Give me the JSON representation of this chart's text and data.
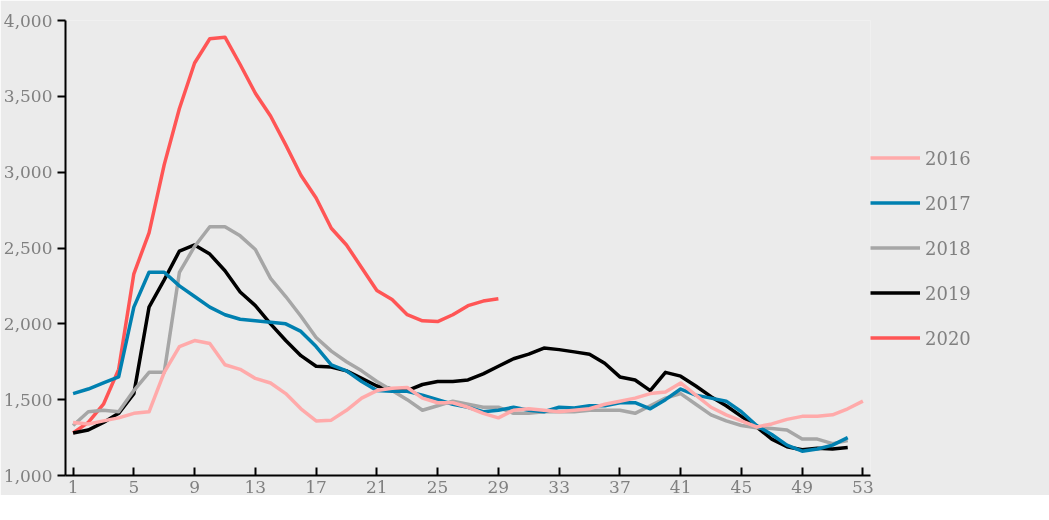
{
  "chart_data": {
    "type": "line",
    "x": [
      1,
      2,
      3,
      4,
      5,
      6,
      7,
      8,
      9,
      10,
      11,
      12,
      13,
      14,
      15,
      16,
      17,
      18,
      19,
      20,
      21,
      22,
      23,
      24,
      25,
      26,
      27,
      28,
      29,
      30,
      31,
      32,
      33,
      34,
      35,
      36,
      37,
      38,
      39,
      40,
      41,
      42,
      43,
      44,
      45,
      46,
      47,
      48,
      49,
      50,
      51,
      52,
      53
    ],
    "series": [
      {
        "name": "2016",
        "color": "#ffaaaa",
        "values": [
          1350,
          1340,
          1360,
          1380,
          1410,
          1420,
          1680,
          1850,
          1890,
          1870,
          1730,
          1700,
          1640,
          1610,
          1540,
          1440,
          1360,
          1365,
          1430,
          1510,
          1560,
          1575,
          1580,
          1510,
          1480,
          1480,
          1450,
          1410,
          1380,
          1430,
          1440,
          1430,
          1420,
          1430,
          1440,
          1470,
          1490,
          1510,
          1540,
          1550,
          1610,
          1530,
          1450,
          1400,
          1360,
          1320,
          1340,
          1370,
          1390,
          1390,
          1400,
          1440,
          1490
        ]
      },
      {
        "name": "2017",
        "color": "#0080b0",
        "values": [
          1540,
          1570,
          1610,
          1650,
          2110,
          2340,
          2340,
          2250,
          2180,
          2110,
          2060,
          2030,
          2020,
          2010,
          2000,
          1950,
          1850,
          1730,
          1690,
          1620,
          1560,
          1555,
          1555,
          1530,
          1500,
          1470,
          1450,
          1420,
          1430,
          1450,
          1430,
          1420,
          1450,
          1445,
          1460,
          1460,
          1480,
          1480,
          1440,
          1500,
          1570,
          1530,
          1510,
          1490,
          1420,
          1330,
          1270,
          1200,
          1160,
          1175,
          1200,
          1250,
          null
        ]
      },
      {
        "name": "2018",
        "color": "#a6a6a6",
        "values": [
          1330,
          1420,
          1430,
          1420,
          1560,
          1680,
          1680,
          2340,
          2510,
          2640,
          2640,
          2580,
          2490,
          2300,
          2180,
          2050,
          1910,
          1820,
          1750,
          1690,
          1620,
          1560,
          1500,
          1430,
          1460,
          1490,
          1470,
          1450,
          1450,
          1410,
          1410,
          1420,
          1420,
          1420,
          1430,
          1430,
          1430,
          1410,
          1460,
          1510,
          1540,
          1470,
          1400,
          1360,
          1330,
          1315,
          1310,
          1300,
          1240,
          1240,
          1210,
          1230,
          null
        ]
      },
      {
        "name": "2019",
        "color": "#000000",
        "values": [
          1280,
          1300,
          1350,
          1410,
          1540,
          2110,
          2290,
          2480,
          2520,
          2460,
          2350,
          2210,
          2120,
          2000,
          1890,
          1790,
          1720,
          1715,
          1690,
          1640,
          1590,
          1570,
          1560,
          1600,
          1620,
          1620,
          1630,
          1670,
          1720,
          1770,
          1800,
          1840,
          1830,
          1815,
          1800,
          1740,
          1650,
          1630,
          1560,
          1680,
          1655,
          1590,
          1520,
          1460,
          1390,
          1320,
          1240,
          1190,
          1170,
          1180,
          1175,
          1185,
          null
        ]
      },
      {
        "name": "2020",
        "color": "#ff5555",
        "values": [
          1280,
          1350,
          1470,
          1700,
          2330,
          2600,
          3050,
          3420,
          3720,
          3880,
          3890,
          3710,
          3520,
          3370,
          3180,
          2980,
          2830,
          2630,
          2520,
          2370,
          2220,
          2160,
          2060,
          2020,
          2015,
          2060,
          2120,
          2150,
          2165,
          null,
          null,
          null,
          null,
          null,
          null,
          null,
          null,
          null,
          null,
          null,
          null,
          null,
          null,
          null,
          null,
          null,
          null,
          null,
          null,
          null,
          null,
          null,
          null
        ]
      }
    ],
    "xlim": [
      0.5,
      53.5
    ],
    "xticks": [
      1,
      5,
      9,
      13,
      17,
      21,
      25,
      29,
      33,
      37,
      41,
      45,
      49,
      53
    ],
    "ylim": [
      1000,
      4000
    ],
    "yticks": [
      {
        "value": 1000,
        "label": "1,000"
      },
      {
        "value": 1500,
        "label": "1,500"
      },
      {
        "value": 2000,
        "label": "2,000"
      },
      {
        "value": 2500,
        "label": "2,500"
      },
      {
        "value": 3000,
        "label": "3,000"
      },
      {
        "value": 3500,
        "label": "3,500"
      },
      {
        "value": 4000,
        "label": "4,000"
      }
    ],
    "grid": false,
    "legend": "right",
    "marker": "none",
    "line_style": "solid"
  }
}
